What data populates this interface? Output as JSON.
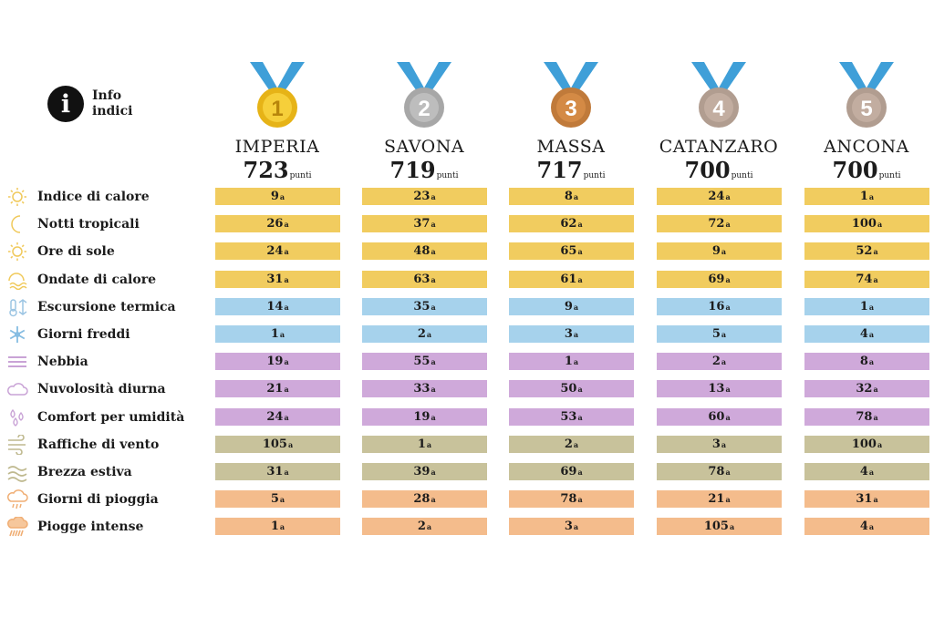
{
  "info": {
    "line1": "Info",
    "line2": "indici"
  },
  "colors": {
    "gold": "#f1cc5f",
    "blue": "#a6d2ec",
    "purple": "#cfa9da",
    "olive": "#c8c29b",
    "orange": "#f4bc8c",
    "ribbon": "#3f9fd8",
    "icon": "#f0c95a",
    "medal_gold": "#e6b317",
    "medal_silver": "#a7a7a7",
    "medal_bronze": "#c07a3a",
    "medal_plain": "#b19d90"
  },
  "cities": [
    {
      "name": "IMPERIA",
      "score": "723",
      "unit": "punti",
      "rank": "1"
    },
    {
      "name": "SAVONA",
      "score": "719",
      "unit": "punti",
      "rank": "2"
    },
    {
      "name": "MASSA",
      "score": "717",
      "unit": "punti",
      "rank": "3"
    },
    {
      "name": "CATANZARO",
      "score": "700",
      "unit": "punti",
      "rank": "4"
    },
    {
      "name": "ANCONA",
      "score": "700",
      "unit": "punti",
      "rank": "5"
    }
  ],
  "rows": [
    {
      "label": "Indice di calore",
      "icon": "sun-icon",
      "color": "gold",
      "values": [
        "9",
        "23",
        "8",
        "24",
        "1"
      ]
    },
    {
      "label": "Notti tropicali",
      "icon": "moon-icon",
      "color": "gold",
      "values": [
        "26",
        "37",
        "62",
        "72",
        "100"
      ]
    },
    {
      "label": "Ore di sole",
      "icon": "sun-icon",
      "color": "gold",
      "values": [
        "24",
        "48",
        "65",
        "9",
        "52"
      ]
    },
    {
      "label": "Ondate di calore",
      "icon": "heat-wave-icon",
      "color": "gold",
      "values": [
        "31",
        "63",
        "61",
        "69",
        "74"
      ]
    },
    {
      "label": "Escursione termica",
      "icon": "thermometer-icon",
      "color": "blue",
      "values": [
        "14",
        "35",
        "9",
        "16",
        "1"
      ]
    },
    {
      "label": "Giorni freddi",
      "icon": "snowflake-icon",
      "color": "blue",
      "values": [
        "1",
        "2",
        "3",
        "5",
        "4"
      ]
    },
    {
      "label": "Nebbia",
      "icon": "fog-icon",
      "color": "purple",
      "values": [
        "19",
        "55",
        "1",
        "2",
        "8"
      ]
    },
    {
      "label": "Nuvolosità diurna",
      "icon": "cloud-icon",
      "color": "purple",
      "values": [
        "21",
        "33",
        "50",
        "13",
        "32"
      ]
    },
    {
      "label": "Comfort per umidità",
      "icon": "drops-icon",
      "color": "purple",
      "values": [
        "24",
        "19",
        "53",
        "60",
        "78"
      ]
    },
    {
      "label": "Raffiche di vento",
      "icon": "wind-gust-icon",
      "color": "olive",
      "values": [
        "105",
        "1",
        "2",
        "3",
        "100"
      ]
    },
    {
      "label": "Brezza estiva",
      "icon": "breeze-icon",
      "color": "olive",
      "values": [
        "31",
        "39",
        "69",
        "78",
        "4"
      ]
    },
    {
      "label": "Giorni di pioggia",
      "icon": "rain-cloud-icon",
      "color": "orange",
      "values": [
        "5",
        "28",
        "78",
        "21",
        "31"
      ]
    },
    {
      "label": "Piogge intense",
      "icon": "heavy-rain-icon",
      "color": "orange",
      "values": [
        "1",
        "2",
        "3",
        "105",
        "4"
      ]
    }
  ],
  "ordinal_suffix": "a"
}
